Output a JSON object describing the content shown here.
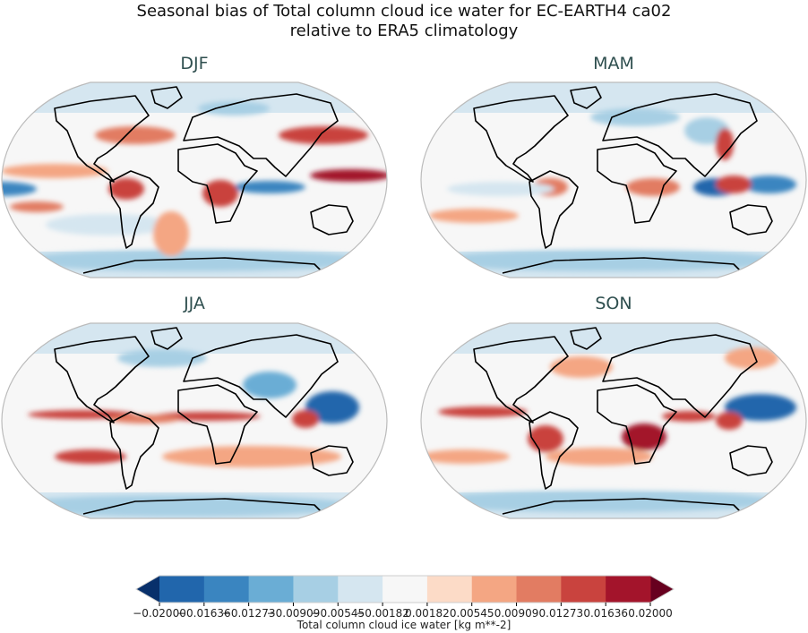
{
  "title": {
    "line1": "Seasonal bias of Total column cloud ice water for EC-EARTH4 ca02",
    "line2": "relative to ERA5 climatology"
  },
  "panels": [
    {
      "season": "DJF"
    },
    {
      "season": "MAM"
    },
    {
      "season": "JJA"
    },
    {
      "season": "SON"
    }
  ],
  "colorbar": {
    "label": "Total column cloud ice water [kg m**-2]",
    "ticks": [
      "−0.02000",
      "−0.01636",
      "−0.01273",
      "−0.00909",
      "−0.00545",
      "−0.00182",
      "0.00182",
      "0.00545",
      "0.00909",
      "0.01273",
      "0.01636",
      "0.02000"
    ],
    "colors": [
      "#2166ac",
      "#3a85c0",
      "#6aadd5",
      "#a7cfe4",
      "#d5e6f0",
      "#f7f7f7",
      "#fcdbc7",
      "#f4a683",
      "#e27c62",
      "#c9433e",
      "#a3142b"
    ],
    "under_color": "#08306b",
    "over_color": "#67001f",
    "range": [
      -0.02,
      0.02
    ],
    "extend": "both"
  }
}
